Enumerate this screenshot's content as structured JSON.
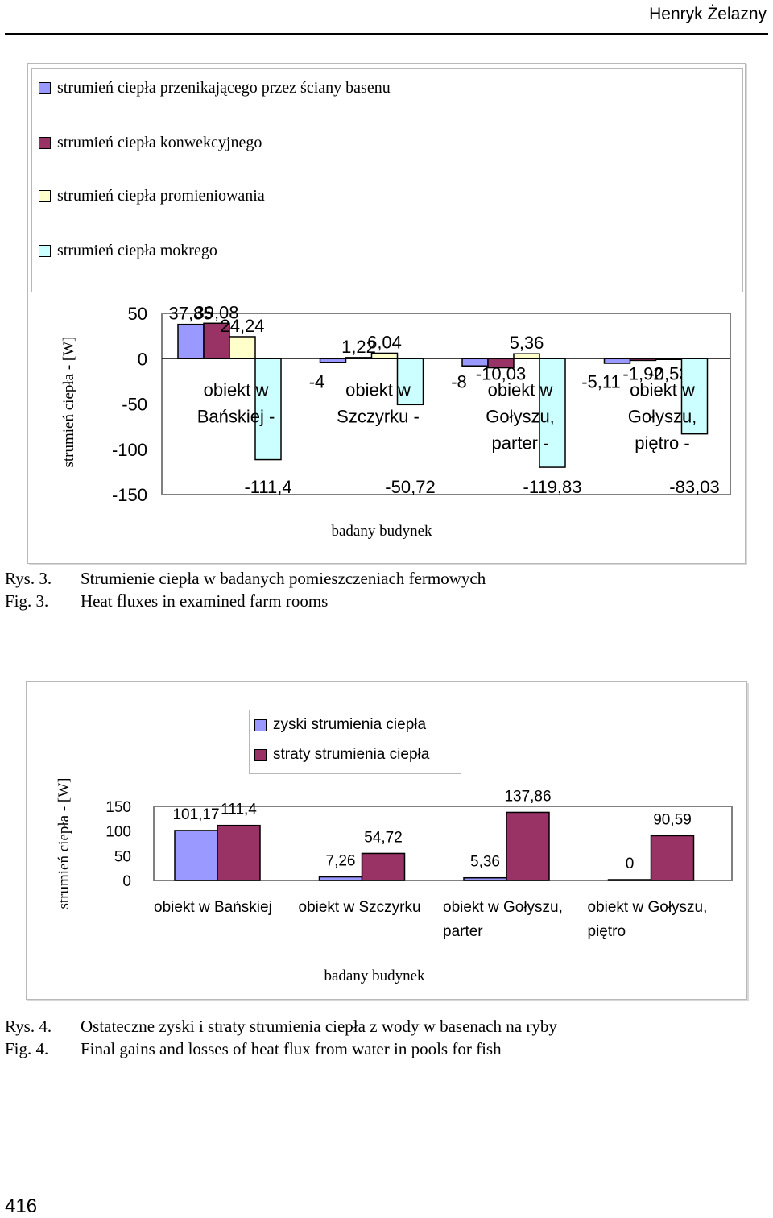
{
  "page": {
    "header_author": "Henryk Żelazny",
    "page_number": "416"
  },
  "figure3": {
    "caption_pl_label": "Rys. 3.",
    "caption_pl": "Strumienie ciepła w badanych pomieszczeniach fermowych",
    "caption_en_label": "Fig. 3.",
    "caption_en": "Heat fluxes in examined farm rooms"
  },
  "figure4": {
    "caption_pl_label": "Rys. 4.",
    "caption_pl": "Ostateczne zyski i straty strumienia ciepła z wody w basenach na ryby",
    "caption_en_label": "Fig. 4.",
    "caption_en": "Final gains and losses of heat flux from water in pools for fish"
  },
  "chart_data": [
    {
      "type": "bar",
      "categories": [
        [
          "obiekt w",
          "Bańskiej -"
        ],
        [
          "obiekt w",
          "Szczyrku -"
        ],
        [
          "obiekt w",
          "Gołyszu,",
          "parter -"
        ],
        [
          "obiekt w",
          "Gołyszu,",
          "piętro -"
        ]
      ],
      "series": [
        {
          "name": "strumień ciepła przenikającego przez ściany basenu",
          "values": [
            37.85,
            -4,
            -8,
            -5.11
          ],
          "labels": [
            "37,85",
            "-4",
            "-8",
            "-5,11"
          ],
          "color": "#9999ff"
        },
        {
          "name": "strumień ciepła konwekcyjnego",
          "values": [
            39.08,
            1.22,
            -10.03,
            -1.92
          ],
          "labels": [
            "39,08",
            "1,22",
            "-10,03",
            "-1,92"
          ],
          "color": "#993366"
        },
        {
          "name": "strumień ciepła promieniowania",
          "values": [
            24.24,
            6.04,
            5.36,
            -0.53
          ],
          "labels": [
            "24,24",
            "6,04",
            "5,36",
            "-0,53"
          ],
          "color": "#ffffcc"
        },
        {
          "name": "strumień ciepła mokrego",
          "values": [
            -111.4,
            -50.72,
            -119.83,
            -83.03
          ],
          "labels": [
            "-111,4",
            "-50,72",
            "-119,83",
            "-83,03"
          ],
          "color": "#ccffff"
        }
      ],
      "xlabel": "badany budynek",
      "ylabel": "strumień ciepła - [W]",
      "ylim": [
        -150,
        50
      ],
      "yticks": [
        "50",
        "0",
        "-50",
        "-100",
        "-150"
      ],
      "legend_position": "top"
    },
    {
      "type": "bar",
      "categories": [
        [
          "obiekt w Bańskiej"
        ],
        [
          "obiekt w Szczyrku"
        ],
        [
          "obiekt w Gołyszu,",
          "parter"
        ],
        [
          "obiekt w Gołyszu,",
          "piętro"
        ]
      ],
      "series": [
        {
          "name": "zyski strumienia ciepła",
          "values": [
            101.17,
            7.26,
            5.36,
            0
          ],
          "labels": [
            "101,17",
            "7,26",
            "5,36",
            "0"
          ],
          "color": "#9999ff"
        },
        {
          "name": "straty strumienia ciepła",
          "values": [
            111.4,
            54.72,
            137.86,
            90.59
          ],
          "labels": [
            "111,4",
            "54,72",
            "137,86",
            "90,59"
          ],
          "color": "#993366"
        }
      ],
      "xlabel": "badany budynek",
      "ylabel": "strumień ciepła - [W]",
      "ylim": [
        0,
        150
      ],
      "yticks": [
        "150",
        "100",
        "50",
        "0"
      ],
      "legend_position": "top"
    }
  ]
}
